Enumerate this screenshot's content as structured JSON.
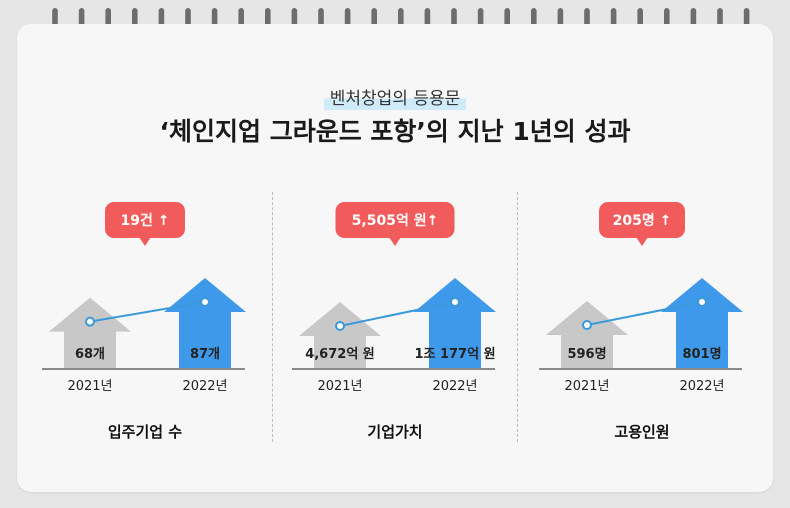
{
  "header": {
    "subtitle": "벤처창업의 등용문",
    "title": "‘체인지업 그라운드 포항’의 지난 1년의 성과"
  },
  "colors": {
    "badge": "#f25b5b",
    "arrow_2021": "#c8c8c8",
    "arrow_2022": "#3f99ea",
    "trend_line": "#3a9ad9",
    "baseline": "#8a8a8a"
  },
  "chart_data": [
    {
      "type": "bar",
      "title": "입주기업 수",
      "categories": [
        "2021년",
        "2022년"
      ],
      "values": [
        68,
        87
      ],
      "value_labels": [
        "68개",
        "87개"
      ],
      "increase_label": "19건 ↑"
    },
    {
      "type": "bar",
      "title": "기업가치",
      "categories": [
        "2021년",
        "2022년"
      ],
      "values": [
        4672,
        10177
      ],
      "value_labels": [
        "4,672억 원",
        "1조 177억 원"
      ],
      "increase_label": "5,505억 원↑"
    },
    {
      "type": "bar",
      "title": "고용인원",
      "categories": [
        "2021년",
        "2022년"
      ],
      "values": [
        596,
        801
      ],
      "value_labels": [
        "596명",
        "801명"
      ],
      "increase_label": "205명 ↑"
    }
  ]
}
